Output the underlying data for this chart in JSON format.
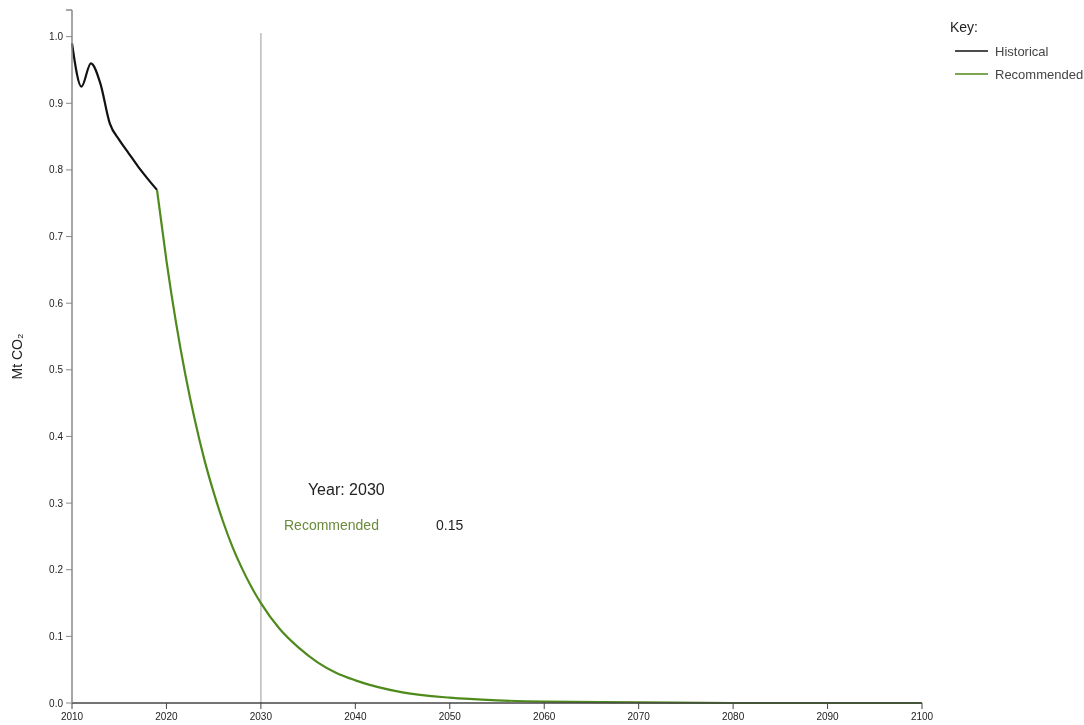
{
  "chart_data": {
    "type": "line",
    "ylabel": "Mt CO₂",
    "legend_title": "Key:",
    "legend": "top right",
    "xlim": [
      2010,
      2100
    ],
    "xticks": [
      2010,
      2020,
      2030,
      2040,
      2050,
      2060,
      2070,
      2080,
      2090,
      2100
    ],
    "ylim": [
      0,
      1.04
    ],
    "yticks": [
      {
        "value": 0,
        "label": "0.0"
      },
      0.1,
      0.2,
      0.3,
      0.4,
      0.5,
      0.6,
      0.7,
      0.8,
      0.9,
      {
        "value": 1,
        "label": "1.0"
      }
    ],
    "series": [
      {
        "name": "Historical",
        "color": "#111111",
        "x": [
          2010,
          2011,
          2012,
          2013,
          2014,
          2015,
          2016,
          2017,
          2018,
          2019
        ],
        "values": [
          0.99,
          0.925,
          0.96,
          0.93,
          0.87,
          0.845,
          0.825,
          0.805,
          0.787,
          0.77
        ]
      },
      {
        "name": "Recommended",
        "color": "#4f8a1c",
        "x": [
          2019,
          2020,
          2021,
          2022,
          2023,
          2024,
          2025,
          2026,
          2027,
          2028,
          2029,
          2030,
          2032,
          2034,
          2036,
          2038,
          2040,
          2045,
          2050,
          2055,
          2060,
          2070,
          2080,
          2100
        ],
        "values": [
          0.77,
          0.664,
          0.572,
          0.493,
          0.425,
          0.366,
          0.316,
          0.272,
          0.234,
          0.202,
          0.174,
          0.15,
          0.111,
          0.083,
          0.061,
          0.045,
          0.034,
          0.016,
          0.008,
          0.004,
          0.002,
          0.001,
          0,
          0
        ]
      }
    ],
    "ref_lines": [
      {
        "axis": "x",
        "value": 2030,
        "label": "Year: 2030",
        "color": "#bbbbbb"
      }
    ],
    "annotations": [
      "Recommended",
      "0.15"
    ]
  }
}
